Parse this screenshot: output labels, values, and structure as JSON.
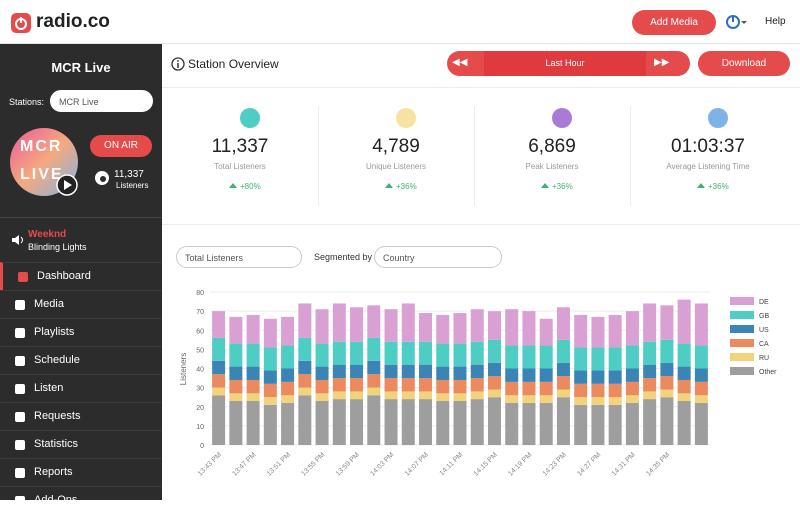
{
  "header": {
    "logo": "radio.co",
    "add_media": "Add Media",
    "help": "Help"
  },
  "sidebar": {
    "station_title": "MCR Live",
    "stations_label": "Stations:",
    "station_select": "MCR Live",
    "artwork": [
      "MCR",
      "LIVE"
    ],
    "on_air": "ON AIR",
    "listener_count": "11,337",
    "listener_label": "Listeners",
    "now_playing": {
      "artist": "Weeknd",
      "track": "Blinding Lights"
    },
    "nav": [
      "Dashboard",
      "Media",
      "Playlists",
      "Schedule",
      "Listen",
      "Requests",
      "Statistics",
      "Reports",
      "Add-Ons"
    ]
  },
  "main": {
    "title": "Station Overview",
    "time_range": "Last Hour",
    "download": "Download",
    "stats": [
      {
        "value": "11,337",
        "label": "Total Listeners",
        "change": "+80%"
      },
      {
        "value": "4,789",
        "label": "Unique Listeners",
        "change": "+36%"
      },
      {
        "value": "6,869",
        "label": "Peak Listeners",
        "change": "+36%"
      },
      {
        "value": "01:03:37",
        "label": "Average Listening Time",
        "change": "+36%"
      }
    ],
    "filters": {
      "metric": "Total Listeners",
      "segmented_by": "Segmented by",
      "segment": "Country"
    }
  },
  "chart_data": {
    "type": "bar",
    "stacked": true,
    "y_label": "Listeners",
    "legend": "right",
    "categories": [
      "13:43 PM",
      null,
      "13:47 PM",
      null,
      "13:51 PM",
      null,
      "13:55 PM",
      null,
      "13:59 PM",
      null,
      "14:03 PM",
      null,
      "14:07 PM",
      null,
      "14:11 PM",
      null,
      "14:15 PM",
      null,
      "14:19 PM",
      null,
      "14:23 PM",
      null,
      "14:27 PM",
      null,
      "14:31 PM",
      null,
      "14:35 PM",
      null,
      null
    ],
    "series": [
      {
        "name": "Other",
        "color": "#9e9e9e",
        "values": [
          26,
          23,
          23,
          21,
          22,
          26,
          23,
          24,
          24,
          26,
          24,
          24,
          24,
          23,
          23,
          24,
          25,
          22,
          22,
          22,
          25,
          21,
          21,
          21,
          22,
          24,
          25,
          23,
          22
        ]
      },
      {
        "name": "RU",
        "color": "#f2d27a",
        "values": [
          4,
          4,
          4,
          4,
          4,
          4,
          4,
          4,
          4,
          4,
          4,
          4,
          4,
          4,
          4,
          4,
          4,
          4,
          4,
          4,
          4,
          4,
          4,
          4,
          4,
          4,
          4,
          4,
          4
        ]
      },
      {
        "name": "CA",
        "color": "#ec8a5f",
        "values": [
          7,
          7,
          7,
          7,
          7,
          7,
          7,
          7,
          7,
          7,
          7,
          7,
          7,
          7,
          7,
          7,
          7,
          7,
          7,
          7,
          7,
          7,
          7,
          7,
          7,
          7,
          7,
          7,
          7
        ]
      },
      {
        "name": "US",
        "color": "#3a85b5",
        "values": [
          7,
          7,
          7,
          7,
          7,
          7,
          7,
          7,
          7,
          7,
          7,
          7,
          7,
          7,
          7,
          7,
          7,
          7,
          7,
          7,
          7,
          7,
          7,
          7,
          7,
          7,
          7,
          7,
          7
        ]
      },
      {
        "name": "GB",
        "color": "#4ecdc4",
        "values": [
          12,
          12,
          12,
          12,
          12,
          12,
          12,
          12,
          12,
          12,
          12,
          12,
          12,
          12,
          12,
          12,
          12,
          12,
          12,
          12,
          12,
          12,
          12,
          12,
          12,
          12,
          12,
          12,
          12
        ]
      },
      {
        "name": "DE",
        "color": "#d9a0d4",
        "values": [
          14,
          14,
          15,
          15,
          15,
          18,
          18,
          20,
          18,
          17,
          17,
          20,
          15,
          15,
          16,
          17,
          15,
          19,
          18,
          14,
          17,
          17,
          16,
          17,
          18,
          20,
          18,
          23,
          22
        ]
      }
    ],
    "ylim": [
      0,
      80
    ],
    "yticks": [
      0,
      10,
      20,
      30,
      40,
      50,
      60,
      70,
      80
    ],
    "grid": true
  }
}
